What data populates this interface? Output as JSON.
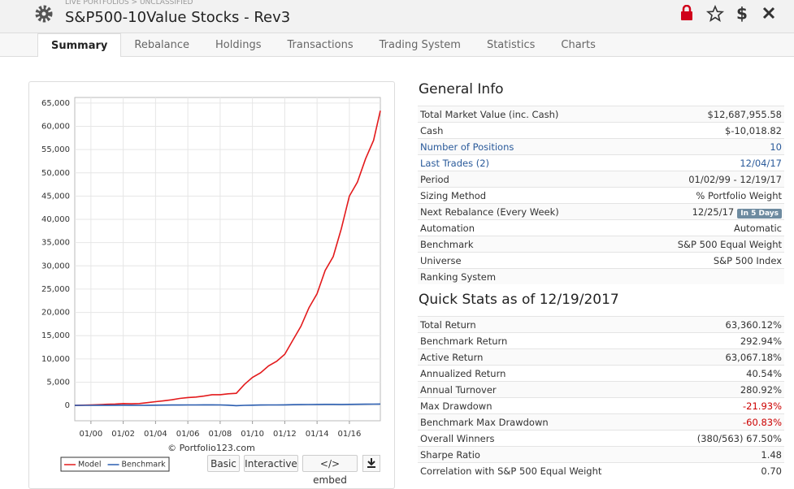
{
  "header": {
    "breadcrumb": "LIVE PORTFOLIOS > UNCLASSIFIED",
    "title": "S&P500-10Value Stocks - Rev3"
  },
  "tabs": [
    "Summary",
    "Rebalance",
    "Holdings",
    "Transactions",
    "Trading System",
    "Statistics",
    "Charts"
  ],
  "chart_data": {
    "type": "line",
    "x": [
      "01/99",
      "07/99",
      "01/00",
      "07/00",
      "01/01",
      "07/01",
      "01/02",
      "07/02",
      "01/03",
      "07/03",
      "01/04",
      "07/04",
      "01/05",
      "07/05",
      "01/06",
      "07/06",
      "01/07",
      "07/07",
      "01/08",
      "07/08",
      "01/09",
      "07/09",
      "01/10",
      "07/10",
      "01/11",
      "07/11",
      "01/12",
      "07/12",
      "01/13",
      "07/13",
      "01/14",
      "07/14",
      "01/15",
      "07/15",
      "01/16",
      "07/16",
      "01/17",
      "07/17",
      "12/17"
    ],
    "series": [
      {
        "name": "Model",
        "color": "#e31a1c",
        "values": [
          0,
          50,
          100,
          150,
          250,
          300,
          400,
          350,
          400,
          600,
          800,
          1000,
          1200,
          1500,
          1700,
          1800,
          2000,
          2300,
          2300,
          2500,
          2600,
          4500,
          6000,
          7000,
          8500,
          9500,
          11000,
          14000,
          17000,
          21000,
          24000,
          29000,
          32000,
          38000,
          45000,
          48000,
          53000,
          57000,
          63360
        ]
      },
      {
        "name": "Benchmark",
        "color": "#2a5db0",
        "values": [
          0,
          10,
          20,
          30,
          40,
          40,
          50,
          30,
          20,
          40,
          60,
          70,
          80,
          90,
          100,
          110,
          120,
          130,
          110,
          50,
          -50,
          20,
          60,
          80,
          100,
          110,
          130,
          150,
          170,
          190,
          210,
          230,
          230,
          210,
          220,
          240,
          260,
          280,
          293
        ]
      }
    ],
    "xticks": [
      "01/00",
      "01/02",
      "01/04",
      "01/06",
      "01/08",
      "01/10",
      "01/12",
      "01/14",
      "01/16"
    ],
    "ylim": [
      -3300,
      66200
    ],
    "yticks": [
      0,
      {
        "value": 5000,
        "label": "5,000"
      },
      {
        "value": 10000,
        "label": "10,000"
      },
      {
        "value": 15000,
        "label": "15,000"
      },
      {
        "value": 20000,
        "label": "20,000"
      },
      {
        "value": 25000,
        "label": "25,000"
      },
      {
        "value": 30000,
        "label": "30,000"
      },
      {
        "value": 35000,
        "label": "35,000"
      },
      {
        "value": 40000,
        "label": "40,000"
      },
      {
        "value": 45000,
        "label": "45,000"
      },
      {
        "value": 50000,
        "label": "50,000"
      },
      {
        "value": 55000,
        "label": "55,000"
      },
      {
        "value": 60000,
        "label": "60,000"
      },
      {
        "value": 65000,
        "label": "65,000"
      }
    ],
    "grid": true,
    "credit": "© Portfolio123.com"
  },
  "chart_buttons": [
    "Basic",
    "Interactive",
    "</> embed"
  ],
  "general_info": {
    "title": "General Info",
    "rows": [
      {
        "label": "Total Market Value (inc. Cash)",
        "value": "$12,687,955.58"
      },
      {
        "label": "Cash",
        "value": "$-10,018.82"
      },
      {
        "label": "Number of Positions",
        "value": "10",
        "link": true
      },
      {
        "label": "Last Trades (2)",
        "value": "12/04/17",
        "link": true
      },
      {
        "label": "Period",
        "value": "01/02/99 - 12/19/17"
      },
      {
        "label": "Sizing Method",
        "value": "% Portfolio Weight"
      },
      {
        "label": "Next Rebalance (Every Week)",
        "value": "12/25/17",
        "badge": "In 5 Days"
      },
      {
        "label": "Automation",
        "value": "Automatic"
      },
      {
        "label": "Benchmark",
        "value": "S&P 500 Equal Weight"
      },
      {
        "label": "Universe",
        "value": "S&P 500 Index"
      },
      {
        "label": "Ranking System"
      }
    ]
  },
  "quick_stats": {
    "title": "Quick Stats as of 12/19/2017",
    "rows": [
      {
        "label": "Total Return",
        "value": "63,360.12%"
      },
      {
        "label": "Benchmark Return",
        "value": "292.94%"
      },
      {
        "label": "Active Return",
        "value": "63,067.18%"
      },
      {
        "label": "Annualized Return",
        "value": "40.54%"
      },
      {
        "label": "Annual Turnover",
        "value": "280.92%"
      },
      {
        "label": "Max Drawdown",
        "value": "-21.93%"
      },
      {
        "label": "Benchmark Max Drawdown",
        "value": "-60.83%"
      },
      {
        "label": "Overall Winners",
        "value": "(380/563) 67.50%"
      },
      {
        "label": "Sharpe Ratio",
        "value": "1.48"
      },
      {
        "label": "Correlation with S&P 500 Equal Weight",
        "value": "0.70"
      }
    ]
  }
}
